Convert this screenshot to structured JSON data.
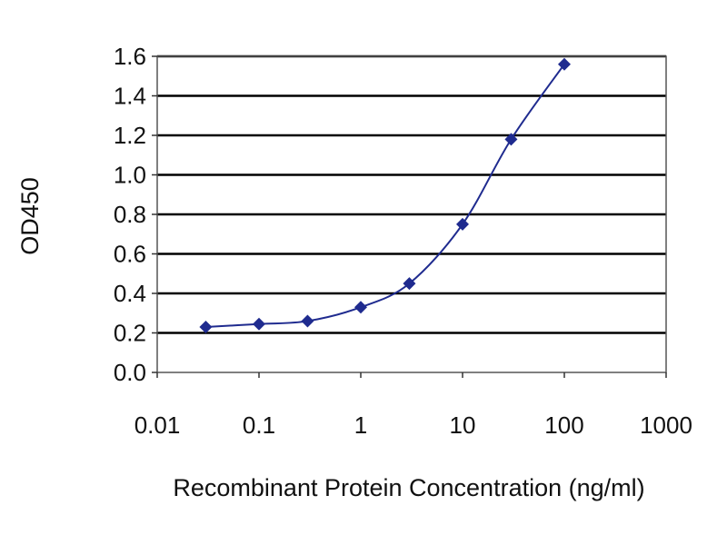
{
  "chart_data": {
    "type": "line",
    "x_scale": "log",
    "xlabel": "Recombinant Protein Concentration (ng/ml)",
    "ylabel": "OD450",
    "xlim": [
      0.01,
      1000
    ],
    "ylim": [
      0,
      1.6
    ],
    "x_ticks": [
      0.01,
      0.1,
      1,
      10,
      100,
      1000
    ],
    "x_tick_labels": [
      "0.01",
      "0.1",
      "1",
      "10",
      "100",
      "1000"
    ],
    "y_ticks": [
      0,
      0.2,
      0.4,
      0.6,
      0.8,
      1.0,
      1.2,
      1.4,
      1.6
    ],
    "y_tick_labels": [
      "0.0",
      "0.2",
      "0.4",
      "0.6",
      "0.8",
      "1.0",
      "1.2",
      "1.4",
      "1.6"
    ],
    "grid": "horizontal",
    "series": [
      {
        "x": [
          0.03,
          0.1,
          0.3,
          1,
          3,
          10,
          30,
          100
        ],
        "y": [
          0.23,
          0.245,
          0.26,
          0.33,
          0.45,
          0.75,
          1.18,
          1.56
        ]
      }
    ],
    "colors": {
      "series": "#1f2b8f",
      "grid": "#000000",
      "frame": "#555555"
    }
  }
}
